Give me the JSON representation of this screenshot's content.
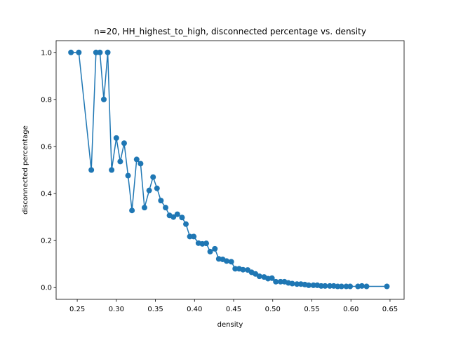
{
  "chart_data": {
    "type": "line",
    "title": "n=20, HH_highest_to_high, disconnected percentage vs. density",
    "xlabel": "density",
    "ylabel": "disconnected percentage",
    "xlim": [
      0.223,
      0.668
    ],
    "ylim": [
      -0.05,
      1.05
    ],
    "xticks": [
      0.25,
      0.3,
      0.35,
      0.4,
      0.45,
      0.5,
      0.55,
      0.6,
      0.65
    ],
    "xtick_labels": [
      "0.25",
      "0.30",
      "0.35",
      "0.40",
      "0.45",
      "0.50",
      "0.55",
      "0.60",
      "0.65"
    ],
    "yticks": [
      0.0,
      0.2,
      0.4,
      0.6,
      0.8,
      1.0
    ],
    "ytick_labels": [
      "0.0",
      "0.2",
      "0.4",
      "0.6",
      "0.8",
      "1.0"
    ],
    "grid": false,
    "marker": "circle",
    "series": [
      {
        "color": "#1f77b4",
        "points": [
          [
            0.242,
            1.0
          ],
          [
            0.252,
            1.0
          ],
          [
            0.268,
            0.5
          ],
          [
            0.274,
            1.0
          ],
          [
            0.279,
            1.0
          ],
          [
            0.284,
            0.8
          ],
          [
            0.289,
            1.0
          ],
          [
            0.294,
            0.5
          ],
          [
            0.3,
            0.636
          ],
          [
            0.305,
            0.536
          ],
          [
            0.31,
            0.614
          ],
          [
            0.315,
            0.476
          ],
          [
            0.32,
            0.328
          ],
          [
            0.326,
            0.545
          ],
          [
            0.331,
            0.527
          ],
          [
            0.336,
            0.34
          ],
          [
            0.342,
            0.413
          ],
          [
            0.347,
            0.47
          ],
          [
            0.352,
            0.422
          ],
          [
            0.357,
            0.37
          ],
          [
            0.363,
            0.34
          ],
          [
            0.368,
            0.307
          ],
          [
            0.373,
            0.3
          ],
          [
            0.378,
            0.312
          ],
          [
            0.384,
            0.298
          ],
          [
            0.389,
            0.27
          ],
          [
            0.394,
            0.217
          ],
          [
            0.399,
            0.217
          ],
          [
            0.405,
            0.189
          ],
          [
            0.41,
            0.186
          ],
          [
            0.415,
            0.188
          ],
          [
            0.42,
            0.153
          ],
          [
            0.426,
            0.165
          ],
          [
            0.431,
            0.122
          ],
          [
            0.436,
            0.12
          ],
          [
            0.441,
            0.113
          ],
          [
            0.447,
            0.11
          ],
          [
            0.452,
            0.08
          ],
          [
            0.457,
            0.08
          ],
          [
            0.462,
            0.076
          ],
          [
            0.468,
            0.075
          ],
          [
            0.473,
            0.065
          ],
          [
            0.478,
            0.058
          ],
          [
            0.483,
            0.048
          ],
          [
            0.489,
            0.045
          ],
          [
            0.494,
            0.038
          ],
          [
            0.499,
            0.04
          ],
          [
            0.504,
            0.025
          ],
          [
            0.51,
            0.025
          ],
          [
            0.515,
            0.025
          ],
          [
            0.52,
            0.02
          ],
          [
            0.525,
            0.017
          ],
          [
            0.531,
            0.015
          ],
          [
            0.536,
            0.015
          ],
          [
            0.541,
            0.013
          ],
          [
            0.546,
            0.01
          ],
          [
            0.552,
            0.01
          ],
          [
            0.557,
            0.01
          ],
          [
            0.562,
            0.007
          ],
          [
            0.567,
            0.007
          ],
          [
            0.573,
            0.007
          ],
          [
            0.578,
            0.007
          ],
          [
            0.583,
            0.005
          ],
          [
            0.588,
            0.005
          ],
          [
            0.594,
            0.005
          ],
          [
            0.599,
            0.005
          ],
          [
            0.609,
            0.005
          ],
          [
            0.614,
            0.007
          ],
          [
            0.62,
            0.005
          ],
          [
            0.646,
            0.005
          ]
        ]
      }
    ]
  }
}
